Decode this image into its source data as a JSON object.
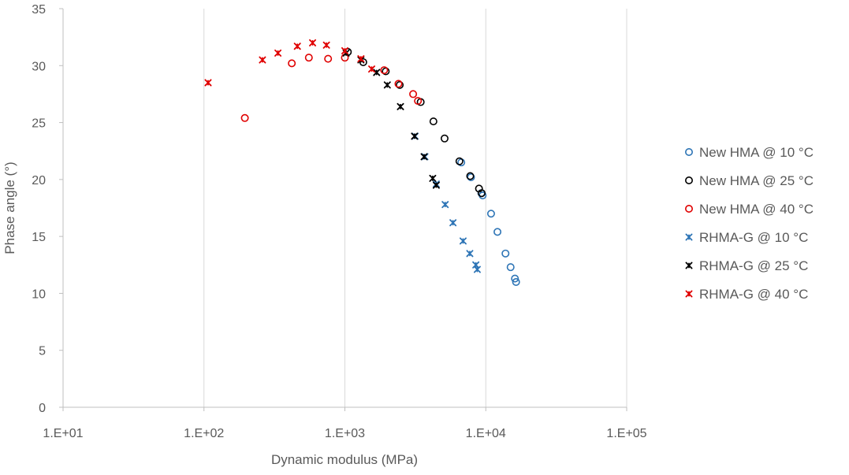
{
  "chart_data": {
    "type": "scatter",
    "title": "",
    "xlabel": "Dynamic modulus  (MPa)",
    "ylabel": "Phase angle  (°)",
    "x_scale": "log",
    "xlim": [
      10,
      100000
    ],
    "ylim": [
      0,
      35
    ],
    "x_ticks": [
      10,
      100,
      1000,
      10000,
      100000
    ],
    "x_tick_labels": [
      "1.E+01",
      "1.E+02",
      "1.E+03",
      "1.E+04",
      "1.E+05"
    ],
    "y_ticks": [
      0,
      5,
      10,
      15,
      20,
      25,
      30,
      35
    ],
    "y_tick_labels": [
      "0",
      "5",
      "10",
      "15",
      "20",
      "25",
      "30",
      "35"
    ],
    "grid": "vertical major gridlines",
    "legend_position": "right",
    "series": [
      {
        "name": "New HMA @ 10 °C",
        "marker": "circle",
        "color": "#2E75B6",
        "x": [
          6700,
          7850,
          9300,
          9500,
          10900,
          12100,
          13800,
          15000,
          16100,
          16400
        ],
        "y": [
          21.5,
          20.2,
          18.8,
          18.6,
          17.0,
          15.4,
          13.5,
          12.3,
          11.3,
          11.0
        ]
      },
      {
        "name": "New HMA @ 25 °C",
        "marker": "circle",
        "color": "#000000",
        "x": [
          1050,
          1350,
          1950,
          2450,
          3450,
          4250,
          5100,
          6500,
          7750,
          8950,
          9350
        ],
        "y": [
          31.2,
          30.3,
          29.5,
          28.3,
          26.8,
          25.1,
          23.6,
          21.6,
          20.3,
          19.2,
          18.8
        ]
      },
      {
        "name": "New HMA @ 40 °C",
        "marker": "circle",
        "color": "#E00000",
        "x": [
          195,
          420,
          555,
          760,
          1000,
          1900,
          2400,
          3050,
          3300
        ],
        "y": [
          25.4,
          30.2,
          30.7,
          30.6,
          30.7,
          29.6,
          28.4,
          27.5,
          26.9
        ]
      },
      {
        "name": "RHMA-G @ 10 °C",
        "marker": "asterisk",
        "color": "#2E75B6",
        "x": [
          3150,
          3700,
          4450,
          5150,
          5850,
          6900,
          7700,
          8500,
          8700
        ],
        "y": [
          23.8,
          22.0,
          19.6,
          17.8,
          16.2,
          14.6,
          13.5,
          12.5,
          12.1
        ]
      },
      {
        "name": "RHMA-G @ 25 °C",
        "marker": "asterisk",
        "color": "#000000",
        "x": [
          1020,
          1300,
          1680,
          2000,
          2480,
          3120,
          3650,
          4200,
          4450
        ],
        "y": [
          31.1,
          30.5,
          29.4,
          28.3,
          26.4,
          23.8,
          22.0,
          20.1,
          19.5
        ]
      },
      {
        "name": "RHMA-G @ 40 °C",
        "marker": "asterisk",
        "color": "#E00000",
        "x": [
          107,
          260,
          335,
          460,
          590,
          740,
          1000,
          1300,
          1550
        ],
        "y": [
          28.5,
          30.5,
          31.1,
          31.7,
          32.0,
          31.8,
          31.3,
          30.6,
          29.7
        ]
      }
    ]
  }
}
